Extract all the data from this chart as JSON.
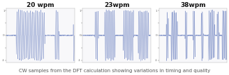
{
  "titles": [
    "20 wpm",
    "23wpm",
    "38wpm"
  ],
  "subtitle": "CW samples from the DFT calculation showing variations in timing and quality",
  "line_color": "#8899cc",
  "fill_color": "#c8d0e8",
  "background_color": "#ffffff",
  "panel_bg": "#f8f8fa",
  "figsize": [
    3.28,
    1.08
  ],
  "dpi": 100,
  "title_fontsize": 6.5,
  "subtitle_fontsize": 5.0,
  "ylim": [
    -1.1,
    1.1
  ],
  "seeds": [
    1,
    2,
    3
  ],
  "carrier_freq": [
    40,
    50,
    60
  ],
  "wpm": [
    20,
    23,
    38
  ]
}
